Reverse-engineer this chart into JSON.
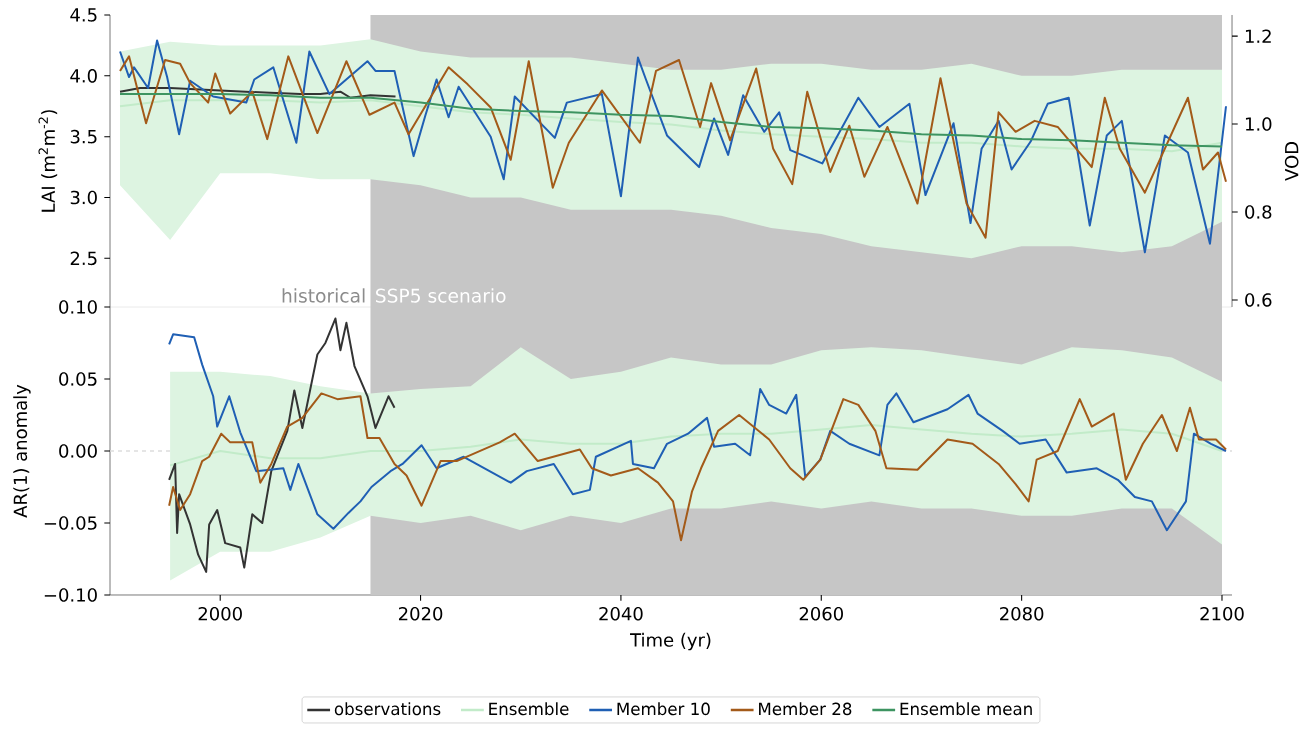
{
  "chart_data": [
    {
      "type": "line",
      "ylabel": "LAI (m$^{2}$m$^{-2}$)",
      "y2label": "VOD",
      "xlim": [
        1989,
        2101
      ],
      "ylim": [
        2.1,
        4.5
      ],
      "yticks": [
        2.5,
        {
          "value": 3,
          "label": "3.0"
        },
        3.5,
        {
          "value": 4,
          "label": "4.0"
        },
        4.5
      ],
      "y2lim": [
        0.584,
        1.248
      ],
      "y2ticks": [
        0.6,
        0.8,
        {
          "value": 1,
          "label": "1.0"
        },
        1.2
      ],
      "tick_labels": "y",
      "legend": "bottom",
      "bands": [
        {
          "axis": "x",
          "from": 2015,
          "to": 2100,
          "label": "SSP5 scenario",
          "color": "#c6c6c6"
        }
      ],
      "annotations": [
        "historical"
      ],
      "series": [
        {
          "name": "observations",
          "color": "#333333",
          "x": [
            1990,
            1992,
            1995,
            2000,
            2005,
            2008,
            2010,
            2012,
            2013,
            2015,
            2017.5
          ],
          "values": [
            3.87,
            3.9,
            3.9,
            3.88,
            3.86,
            3.85,
            3.85,
            3.87,
            3.82,
            3.84,
            3.83
          ]
        },
        {
          "name": "Ensemble",
          "color": "#c2ebc9",
          "x": [
            1990,
            1995,
            2000,
            2005,
            2010,
            2015,
            2020,
            2025,
            2030,
            2035,
            2040,
            2045,
            2050,
            2055,
            2060,
            2065,
            2070,
            2075,
            2080,
            2085,
            2090,
            2095,
            2100
          ],
          "values": [
            3.75,
            3.8,
            3.8,
            3.8,
            3.78,
            3.8,
            3.75,
            3.7,
            3.68,
            3.65,
            3.62,
            3.6,
            3.55,
            3.52,
            3.5,
            3.48,
            3.45,
            3.45,
            3.42,
            3.4,
            3.4,
            3.38,
            3.45
          ],
          "upper": [
            4.2,
            4.28,
            4.25,
            4.25,
            4.25,
            4.3,
            4.2,
            4.15,
            4.15,
            4.15,
            4.1,
            4.05,
            4.05,
            4.1,
            4.1,
            4.05,
            4.05,
            4.1,
            4.0,
            4.0,
            4.05,
            4.05,
            4.05
          ],
          "lower": [
            3.1,
            2.65,
            3.2,
            3.2,
            3.15,
            3.15,
            3.1,
            3.0,
            3.0,
            2.9,
            2.9,
            2.9,
            2.85,
            2.75,
            2.7,
            2.6,
            2.55,
            2.5,
            2.6,
            2.6,
            2.55,
            2.6,
            2.8
          ]
        },
        {
          "name": "Member 10",
          "color": "#1f5fb4",
          "x": [
            1990,
            1990.9,
            1991.4,
            1992.8,
            1993.7,
            1994.7,
            1995.9,
            1997,
            1999.3,
            2002.6,
            2003.4,
            2005.3,
            2007.6,
            2008.9,
            2010.9,
            2014.7,
            2015.5,
            2017.4,
            2019.3,
            2020.5,
            2021.6,
            2022.8,
            2023.8,
            2027,
            2028.3,
            2029.4,
            2033.4,
            2034.6,
            2038.1,
            2040,
            2041.7,
            2042.5,
            2044.6,
            2047.8,
            2049.3,
            2050.7,
            2052.2,
            2054.3,
            2055.8,
            2056.9,
            2060.1,
            2063.7,
            2065.8,
            2068.8,
            2070.4,
            2073.2,
            2074.9,
            2076,
            2077.7,
            2079,
            2080.9,
            2082.6,
            2084.7,
            2086.8,
            2088.5,
            2090,
            2092.3,
            2094.3,
            2096.6,
            2098.8,
            2100.4
          ],
          "values": [
            4.2,
            3.99,
            4.07,
            3.9,
            4.29,
            3.99,
            3.52,
            3.96,
            3.83,
            3.78,
            3.97,
            4.07,
            3.45,
            4.2,
            3.85,
            4.12,
            4.04,
            4.04,
            3.34,
            3.68,
            3.97,
            3.66,
            3.91,
            3.5,
            3.15,
            3.83,
            3.49,
            3.78,
            3.85,
            3.01,
            4.15,
            3.97,
            3.51,
            3.25,
            3.65,
            3.35,
            3.84,
            3.54,
            3.7,
            3.39,
            3.28,
            3.82,
            3.58,
            3.77,
            3.02,
            3.61,
            2.79,
            3.4,
            3.63,
            3.23,
            3.46,
            3.77,
            3.82,
            2.77,
            3.51,
            3.63,
            2.55,
            3.51,
            3.37,
            2.62,
            3.75
          ]
        },
        {
          "name": "Member 28",
          "color": "#a35a19",
          "x": [
            1990,
            1990.9,
            1992.6,
            1994.5,
            1996,
            1997,
            1998.8,
            1999.5,
            2001,
            2003.2,
            2004.7,
            2006.8,
            2009.7,
            2012.6,
            2014.9,
            2017.4,
            2018.8,
            2022.8,
            2024.7,
            2027,
            2029,
            2030.8,
            2033.2,
            2034.8,
            2038.1,
            2041.9,
            2043.5,
            2045.8,
            2047.9,
            2049,
            2050.9,
            2053.5,
            2055.2,
            2057.1,
            2058.6,
            2060.9,
            2062.8,
            2064.3,
            2066.6,
            2069.6,
            2071.9,
            2074.5,
            2076.4,
            2077.7,
            2079.4,
            2081.3,
            2083.6,
            2087,
            2088.3,
            2089.8,
            2092.3,
            2096.6,
            2098.1,
            2099.6,
            2100.4
          ],
          "values": [
            4.04,
            4.16,
            3.61,
            4.13,
            4.1,
            3.94,
            3.78,
            4.02,
            3.69,
            3.87,
            3.48,
            4.16,
            3.53,
            4.12,
            3.68,
            3.78,
            3.52,
            4.07,
            3.93,
            3.74,
            3.31,
            4.12,
            3.08,
            3.45,
            3.88,
            3.45,
            4.04,
            4.13,
            3.58,
            3.94,
            3.47,
            4.06,
            3.4,
            3.11,
            3.87,
            3.21,
            3.59,
            3.17,
            3.58,
            2.95,
            3.98,
            2.95,
            2.67,
            3.7,
            3.54,
            3.63,
            3.58,
            3.25,
            3.82,
            3.4,
            3.04,
            3.82,
            3.23,
            3.37,
            3.13
          ]
        },
        {
          "name": "Ensemble mean",
          "color": "#3d9461",
          "x": [
            1990,
            1995,
            2000,
            2005,
            2010,
            2015,
            2020,
            2025,
            2030,
            2035,
            2040,
            2045,
            2050,
            2055,
            2060,
            2065,
            2070,
            2075,
            2080,
            2085,
            2090,
            2095,
            2100
          ],
          "values": [
            3.85,
            3.85,
            3.85,
            3.84,
            3.82,
            3.82,
            3.78,
            3.73,
            3.71,
            3.7,
            3.68,
            3.67,
            3.62,
            3.58,
            3.57,
            3.55,
            3.52,
            3.51,
            3.48,
            3.47,
            3.45,
            3.43,
            3.42
          ]
        }
      ]
    },
    {
      "type": "line",
      "xlabel": "Time (yr)",
      "ylabel": "AR(1) anomaly",
      "xlim": [
        1989,
        2101
      ],
      "ylim": [
        -0.1,
        0.1
      ],
      "xticks": [
        2000,
        2020,
        2040,
        2060,
        2080,
        2100
      ],
      "yticks": [
        {
          "value": -0.1,
          "label": "−0.10"
        },
        {
          "value": -0.05,
          "label": "−0.05"
        },
        {
          "value": 0,
          "label": "0.00"
        },
        {
          "value": 0.05,
          "label": "0.05"
        },
        {
          "value": 0.1,
          "label": "0.10"
        }
      ],
      "bands": [
        {
          "axis": "x",
          "from": 2015,
          "to": 2100,
          "color": "#c6c6c6"
        }
      ],
      "ref_lines": [
        {
          "axis": "y",
          "value": 0,
          "color": "#dddddd",
          "line_style": "dashed"
        }
      ],
      "series": [
        {
          "color": "#c2ebc9",
          "x": [
            1995,
            2000,
            2005,
            2010,
            2015,
            2020,
            2025,
            2030,
            2035,
            2040,
            2045,
            2050,
            2055,
            2060,
            2065,
            2070,
            2075,
            2080,
            2085,
            2090,
            2095,
            2100
          ],
          "values": [
            -0.01,
            0.0,
            -0.005,
            -0.005,
            0.0,
            0.0,
            0.003,
            0.008,
            0.005,
            0.005,
            0.01,
            0.012,
            0.012,
            0.015,
            0.018,
            0.015,
            0.012,
            0.01,
            0.012,
            0.015,
            0.012,
            0.0
          ],
          "upper": [
            0.055,
            0.055,
            0.052,
            0.045,
            0.04,
            0.043,
            0.045,
            0.072,
            0.05,
            0.055,
            0.065,
            0.06,
            0.06,
            0.07,
            0.072,
            0.07,
            0.065,
            0.06,
            0.072,
            0.07,
            0.065,
            0.048
          ],
          "lower": [
            -0.09,
            -0.07,
            -0.07,
            -0.06,
            -0.045,
            -0.05,
            -0.045,
            -0.055,
            -0.045,
            -0.05,
            -0.04,
            -0.04,
            -0.035,
            -0.04,
            -0.035,
            -0.04,
            -0.04,
            -0.045,
            -0.045,
            -0.04,
            -0.04,
            -0.065
          ]
        },
        {
          "color": "#333333",
          "x": [
            1994.9,
            1995.5,
            1995.7,
            1995.9,
            1997,
            1997.8,
            1998.6,
            1998.9,
            1999.7,
            2000.5,
            2002,
            2002.4,
            2003.2,
            2004.2,
            2005.1,
            2006.7,
            2007.4,
            2008.2,
            2009.7,
            2010.5,
            2011.5,
            2012,
            2012.6,
            2013.4,
            2014.7,
            2015.5,
            2016.8,
            2017.4
          ],
          "values": [
            -0.02,
            -0.009,
            -0.057,
            -0.03,
            -0.051,
            -0.072,
            -0.084,
            -0.051,
            -0.041,
            -0.064,
            -0.067,
            -0.081,
            -0.044,
            -0.05,
            -0.014,
            0.014,
            0.042,
            0.016,
            0.067,
            0.075,
            0.092,
            0.07,
            0.089,
            0.059,
            0.038,
            0.016,
            0.038,
            0.03
          ]
        },
        {
          "color": "#1f5fb4",
          "x": [
            1994.9,
            1995.3,
            1997.4,
            1998.2,
            1999.3,
            1999.7,
            2000.9,
            2002,
            2003.6,
            2006.3,
            2007,
            2007.8,
            2009.7,
            2011.3,
            2012.8,
            2014,
            2015.1,
            2017,
            2018.2,
            2020.1,
            2021.6,
            2024.3,
            2029,
            2030.6,
            2033.3,
            2035.2,
            2036.9,
            2037.5,
            2041,
            2041.2,
            2043.3,
            2044.6,
            2046.7,
            2048.6,
            2049.3,
            2051.4,
            2052.9,
            2053.9,
            2054.8,
            2056.5,
            2057.5,
            2058.4,
            2059.9,
            2060.9,
            2062.8,
            2065.8,
            2066.6,
            2067.5,
            2069.2,
            2072.6,
            2074.7,
            2075.6,
            2078.1,
            2079.8,
            2082.4,
            2084.5,
            2087.5,
            2089.6,
            2091.3,
            2093,
            2094.5,
            2096.4,
            2097.2,
            2098.9,
            2100.4
          ],
          "values": [
            0.074,
            0.081,
            0.079,
            0.06,
            0.038,
            0.017,
            0.038,
            0.013,
            -0.014,
            -0.012,
            -0.027,
            -0.009,
            -0.044,
            -0.054,
            -0.043,
            -0.035,
            -0.025,
            -0.014,
            -0.009,
            0.004,
            -0.012,
            -0.004,
            -0.022,
            -0.014,
            -0.009,
            -0.03,
            -0.027,
            -0.004,
            0.007,
            -0.009,
            -0.012,
            0.005,
            0.012,
            0.023,
            0.003,
            0.005,
            -0.003,
            0.043,
            0.032,
            0.026,
            0.039,
            -0.018,
            -0.006,
            0.014,
            0.005,
            -0.003,
            0.032,
            0.04,
            0.02,
            0.029,
            0.039,
            0.026,
            0.014,
            0.005,
            0.008,
            -0.015,
            -0.012,
            -0.02,
            -0.032,
            -0.035,
            -0.055,
            -0.035,
            0.012,
            0.005,
            0.0
          ]
        },
        {
          "color": "#a35a19",
          "x": [
            1994.9,
            1995.3,
            1996,
            1997,
            1998.2,
            1998.9,
            2000.1,
            2001,
            2003.2,
            2004,
            2005.1,
            2006.7,
            2008.2,
            2010.1,
            2011.7,
            2014,
            2014.7,
            2015.9,
            2017.4,
            2018.6,
            2020.1,
            2022,
            2023.6,
            2027.9,
            2029.4,
            2031.7,
            2035.9,
            2037.1,
            2039,
            2041.7,
            2043.7,
            2045.2,
            2046,
            2047.1,
            2048,
            2049.7,
            2051.8,
            2054.8,
            2056.9,
            2058.2,
            2059.9,
            2062.2,
            2063.7,
            2065.4,
            2066.5,
            2069.6,
            2072.6,
            2075.1,
            2077.7,
            2079.4,
            2080.7,
            2081.5,
            2083.6,
            2085.8,
            2087,
            2089.2,
            2090.4,
            2092.1,
            2094,
            2095.5,
            2096.8,
            2097.7,
            2099.4,
            2100.4
          ],
          "values": [
            -0.038,
            -0.025,
            -0.041,
            -0.03,
            -0.007,
            -0.004,
            0.012,
            0.006,
            0.006,
            -0.022,
            -0.009,
            0.017,
            0.023,
            0.04,
            0.036,
            0.038,
            0.009,
            0.009,
            -0.009,
            -0.017,
            -0.038,
            -0.007,
            -0.007,
            0.006,
            0.012,
            -0.007,
            0.001,
            -0.012,
            -0.017,
            -0.012,
            -0.022,
            -0.035,
            -0.062,
            -0.028,
            -0.012,
            0.014,
            0.025,
            0.008,
            -0.012,
            -0.02,
            -0.006,
            0.036,
            0.032,
            0.014,
            -0.012,
            -0.013,
            0.008,
            0.005,
            -0.009,
            -0.023,
            -0.035,
            -0.006,
            0.0,
            0.036,
            0.017,
            0.026,
            -0.02,
            0.005,
            0.025,
            0.0,
            0.03,
            0.008,
            0.008,
            0.001
          ]
        }
      ]
    }
  ]
}
